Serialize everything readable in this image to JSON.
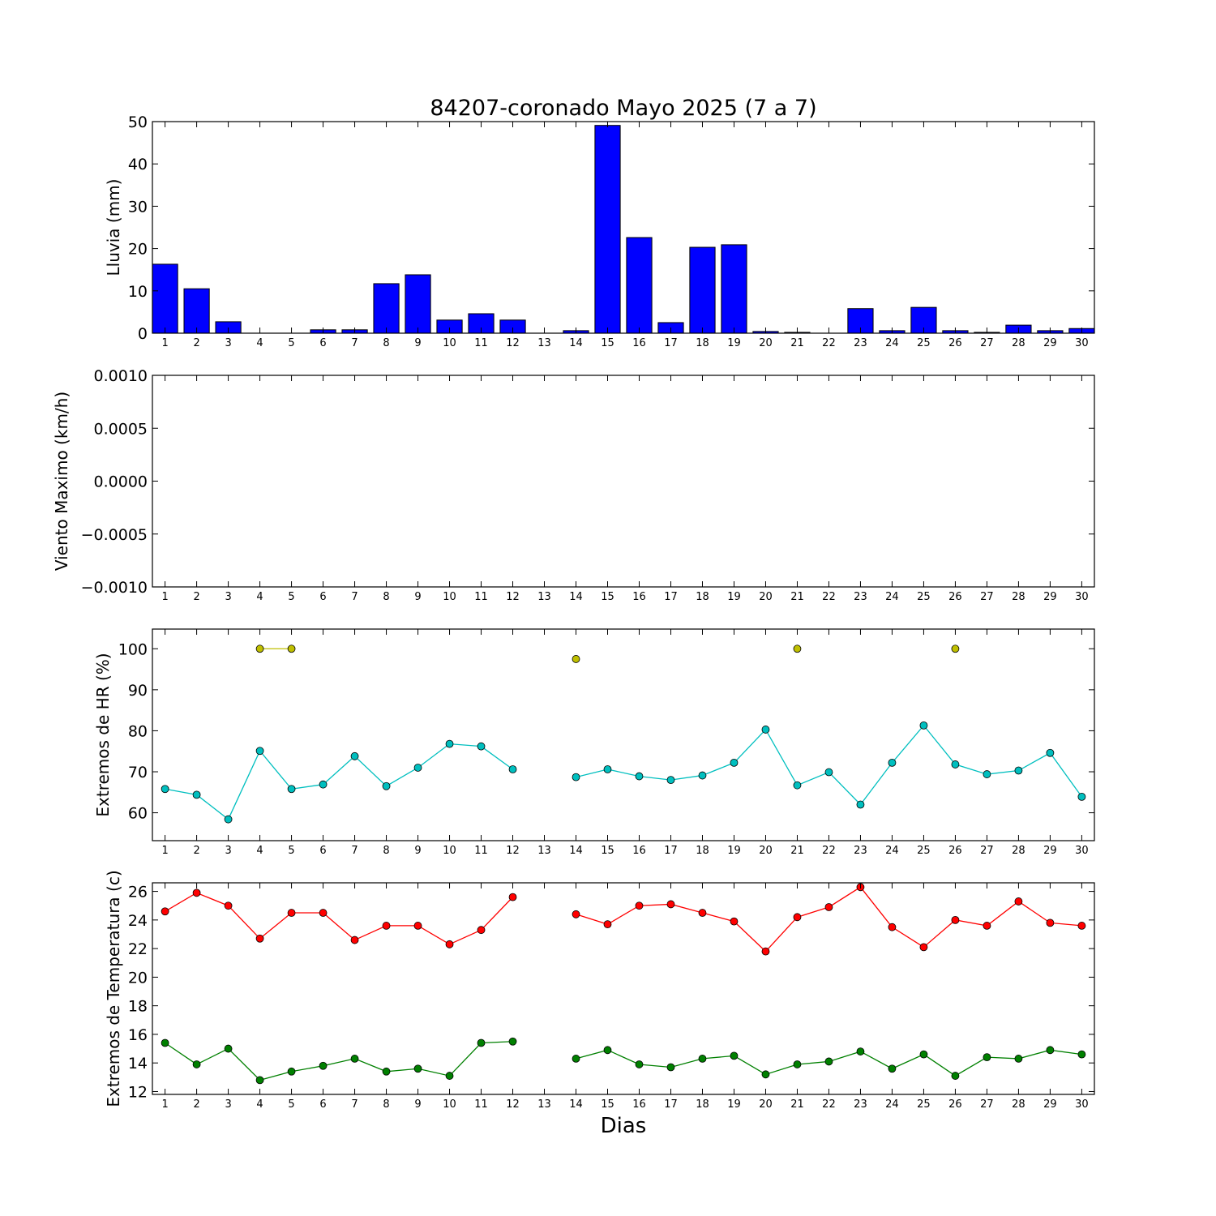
{
  "figure": {
    "title": "84207-coronado Mayo 2025  (7 a 7)",
    "xlabel": "Dias"
  },
  "chart_data": [
    {
      "type": "bar",
      "ylabel": "Lluvia (mm)",
      "categories": [
        "1",
        "2",
        "3",
        "4",
        "5",
        "6",
        "7",
        "8",
        "9",
        "10",
        "11",
        "12",
        "13",
        "14",
        "15",
        "16",
        "17",
        "18",
        "19",
        "20",
        "21",
        "22",
        "23",
        "24",
        "25",
        "26",
        "27",
        "28",
        "29",
        "30"
      ],
      "ylim": [
        0,
        50
      ],
      "yticks": [
        0,
        10,
        20,
        30,
        40,
        50
      ],
      "series": [
        {
          "values": [
            16.3,
            10.5,
            2.7,
            0,
            0,
            0.8,
            0.8,
            11.7,
            13.8,
            3.1,
            4.6,
            3.1,
            0,
            0.6,
            49.1,
            22.6,
            2.5,
            20.3,
            20.9,
            0.4,
            0.2,
            0,
            5.8,
            0.6,
            6.1,
            0.6,
            0.2,
            1.9,
            0.6,
            1.1
          ],
          "color": "#0000ff"
        }
      ],
      "grid": false
    },
    {
      "type": "line",
      "ylabel": "Viento Maximo (km/h)",
      "categories": [
        "1",
        "2",
        "3",
        "4",
        "5",
        "6",
        "7",
        "8",
        "9",
        "10",
        "11",
        "12",
        "13",
        "14",
        "15",
        "16",
        "17",
        "18",
        "19",
        "20",
        "21",
        "22",
        "23",
        "24",
        "25",
        "26",
        "27",
        "28",
        "29",
        "30"
      ],
      "ylim": [
        -0.001,
        0.001
      ],
      "yticks": [
        "−0.0010",
        "−0.0005",
        "0.0000",
        "0.0005",
        "0.0010"
      ],
      "series": [],
      "grid": false
    },
    {
      "type": "line",
      "ylabel": "Extremos de HR (%)",
      "categories": [
        "1",
        "2",
        "3",
        "4",
        "5",
        "6",
        "7",
        "8",
        "9",
        "10",
        "11",
        "12",
        "13",
        "14",
        "15",
        "16",
        "17",
        "18",
        "19",
        "20",
        "21",
        "22",
        "23",
        "24",
        "25",
        "26",
        "27",
        "28",
        "29",
        "30"
      ],
      "ylim": [
        53.2,
        104.8
      ],
      "yticks": [
        60,
        70,
        80,
        90,
        100
      ],
      "series": [
        {
          "color": "#bfbf00",
          "values": [
            null,
            null,
            null,
            100,
            100,
            null,
            null,
            null,
            null,
            null,
            null,
            null,
            null,
            97.5,
            null,
            null,
            null,
            null,
            null,
            null,
            100,
            null,
            null,
            null,
            null,
            100,
            null,
            null,
            null,
            null
          ]
        },
        {
          "color": "#00bfbf",
          "values": [
            65.8,
            64.4,
            58.4,
            75.1,
            65.8,
            66.9,
            73.8,
            66.5,
            71,
            76.8,
            76.2,
            70.6,
            null,
            68.7,
            70.6,
            68.9,
            68,
            69.1,
            72.2,
            80.3,
            66.7,
            69.9,
            62,
            72.2,
            81.3,
            71.8,
            69.4,
            70.3,
            74.6,
            63.9
          ]
        }
      ],
      "grid": false
    },
    {
      "type": "line",
      "ylabel": "Extremos de Temperatura (c)",
      "categories": [
        "1",
        "2",
        "3",
        "4",
        "5",
        "6",
        "7",
        "8",
        "9",
        "10",
        "11",
        "12",
        "13",
        "14",
        "15",
        "16",
        "17",
        "18",
        "19",
        "20",
        "21",
        "22",
        "23",
        "24",
        "25",
        "26",
        "27",
        "28",
        "29",
        "30"
      ],
      "ylim": [
        11.8,
        26.6
      ],
      "yticks": [
        12,
        14,
        16,
        18,
        20,
        22,
        24,
        26
      ],
      "series": [
        {
          "color": "#ff0000",
          "values": [
            24.6,
            25.9,
            25,
            22.7,
            24.5,
            24.5,
            22.6,
            23.6,
            23.6,
            22.3,
            23.3,
            25.6,
            null,
            24.4,
            23.7,
            25,
            25.1,
            24.5,
            23.9,
            21.8,
            24.2,
            24.9,
            26.3,
            23.5,
            22.1,
            24,
            23.6,
            25.3,
            23.8,
            23.6
          ]
        },
        {
          "color": "#008000",
          "values": [
            15.4,
            13.9,
            15,
            12.8,
            13.4,
            13.8,
            14.3,
            13.4,
            13.6,
            13.1,
            15.4,
            15.5,
            null,
            14.3,
            14.9,
            13.9,
            13.7,
            14.3,
            14.5,
            13.2,
            13.9,
            14.1,
            14.8,
            13.6,
            14.6,
            13.1,
            14.4,
            14.3,
            14.9,
            14.6
          ]
        }
      ],
      "grid": false
    }
  ]
}
